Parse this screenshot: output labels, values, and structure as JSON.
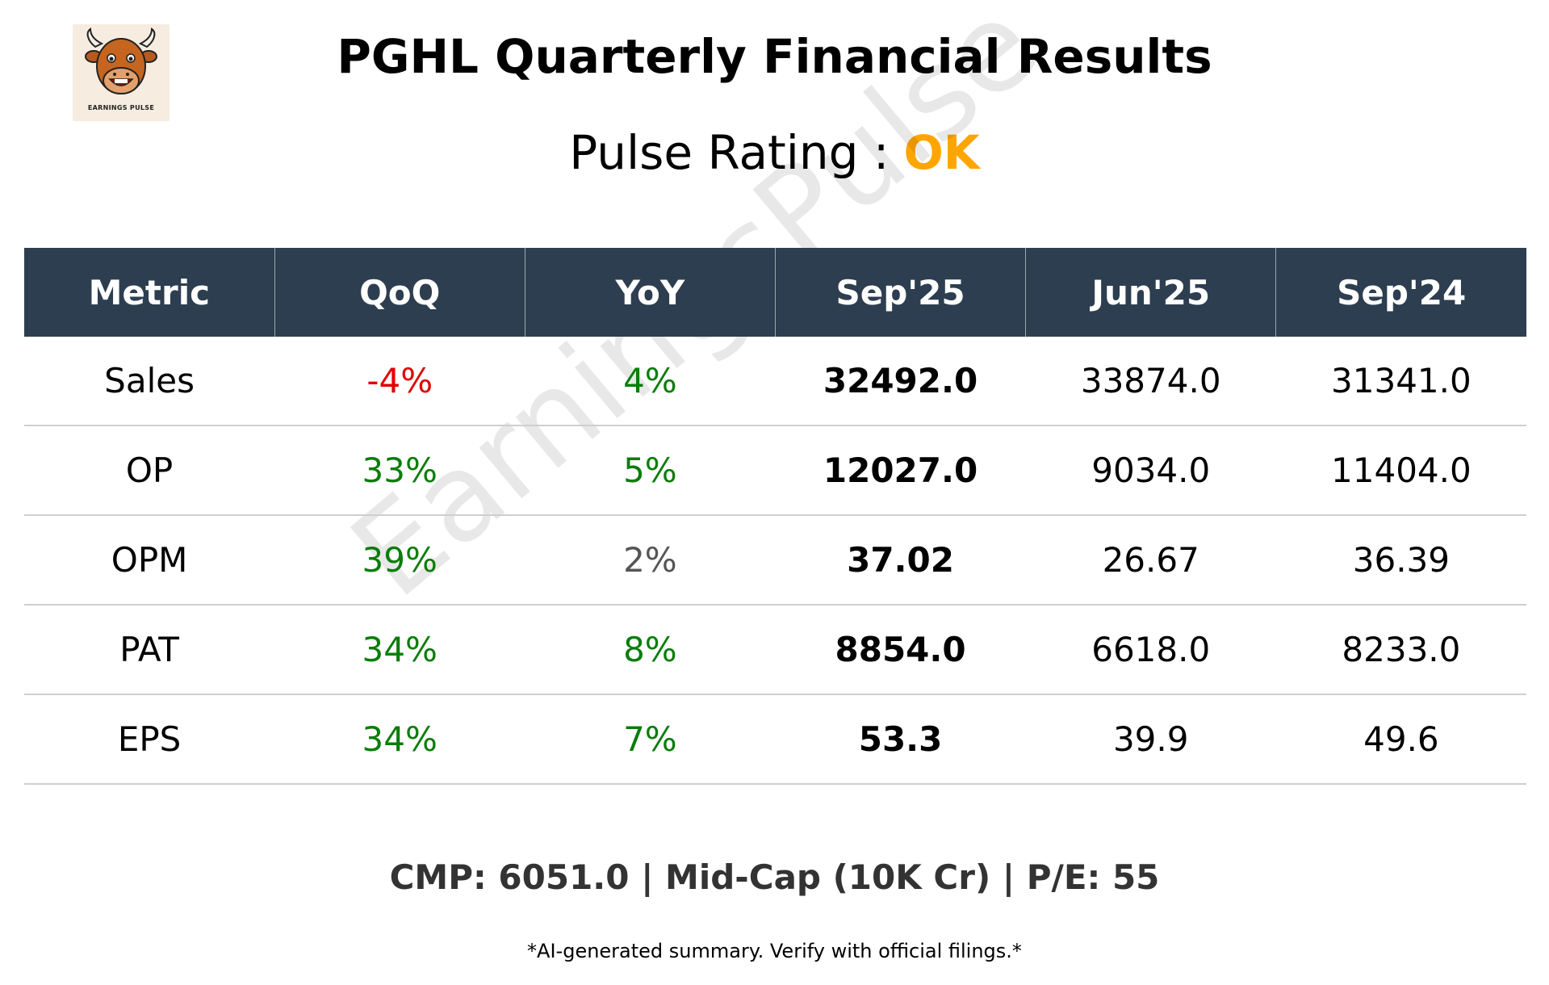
{
  "logo": {
    "caption": "EARNINGS PULSE"
  },
  "title": "PGHL Quarterly Financial Results",
  "rating": {
    "label": "Pulse Rating :",
    "value": "OK",
    "color": "#ffa500"
  },
  "watermark": "EarningsPulse",
  "table": {
    "headers": [
      "Metric",
      "QoQ",
      "YoY",
      "Sep'25",
      "Jun'25",
      "Sep'24"
    ],
    "rows": [
      {
        "metric": "Sales",
        "qoq": "-4%",
        "qoq_trend": "negative",
        "yoy": "4%",
        "yoy_trend": "positive",
        "sep25": "32492.0",
        "jun25": "33874.0",
        "sep24": "31341.0"
      },
      {
        "metric": "OP",
        "qoq": "33%",
        "qoq_trend": "positive",
        "yoy": "5%",
        "yoy_trend": "positive",
        "sep25": "12027.0",
        "jun25": "9034.0",
        "sep24": "11404.0"
      },
      {
        "metric": "OPM",
        "qoq": "39%",
        "qoq_trend": "positive",
        "yoy": "2%",
        "yoy_trend": "neutral",
        "sep25": "37.02",
        "jun25": "26.67",
        "sep24": "36.39"
      },
      {
        "metric": "PAT",
        "qoq": "34%",
        "qoq_trend": "positive",
        "yoy": "8%",
        "yoy_trend": "positive",
        "sep25": "8854.0",
        "jun25": "6618.0",
        "sep24": "8233.0"
      },
      {
        "metric": "EPS",
        "qoq": "34%",
        "qoq_trend": "positive",
        "yoy": "7%",
        "yoy_trend": "positive",
        "sep25": "53.3",
        "jun25": "39.9",
        "sep24": "49.6"
      }
    ]
  },
  "colors": {
    "header_bg": "#2d3e50",
    "positive": "#0a7d0a",
    "negative": "#e00000",
    "neutral": "#555555"
  },
  "footer": {
    "info": "CMP: 6051.0 | Mid-Cap (10K Cr) | P/E: 55",
    "disclaimer": "*AI-generated summary. Verify with official filings.*"
  }
}
